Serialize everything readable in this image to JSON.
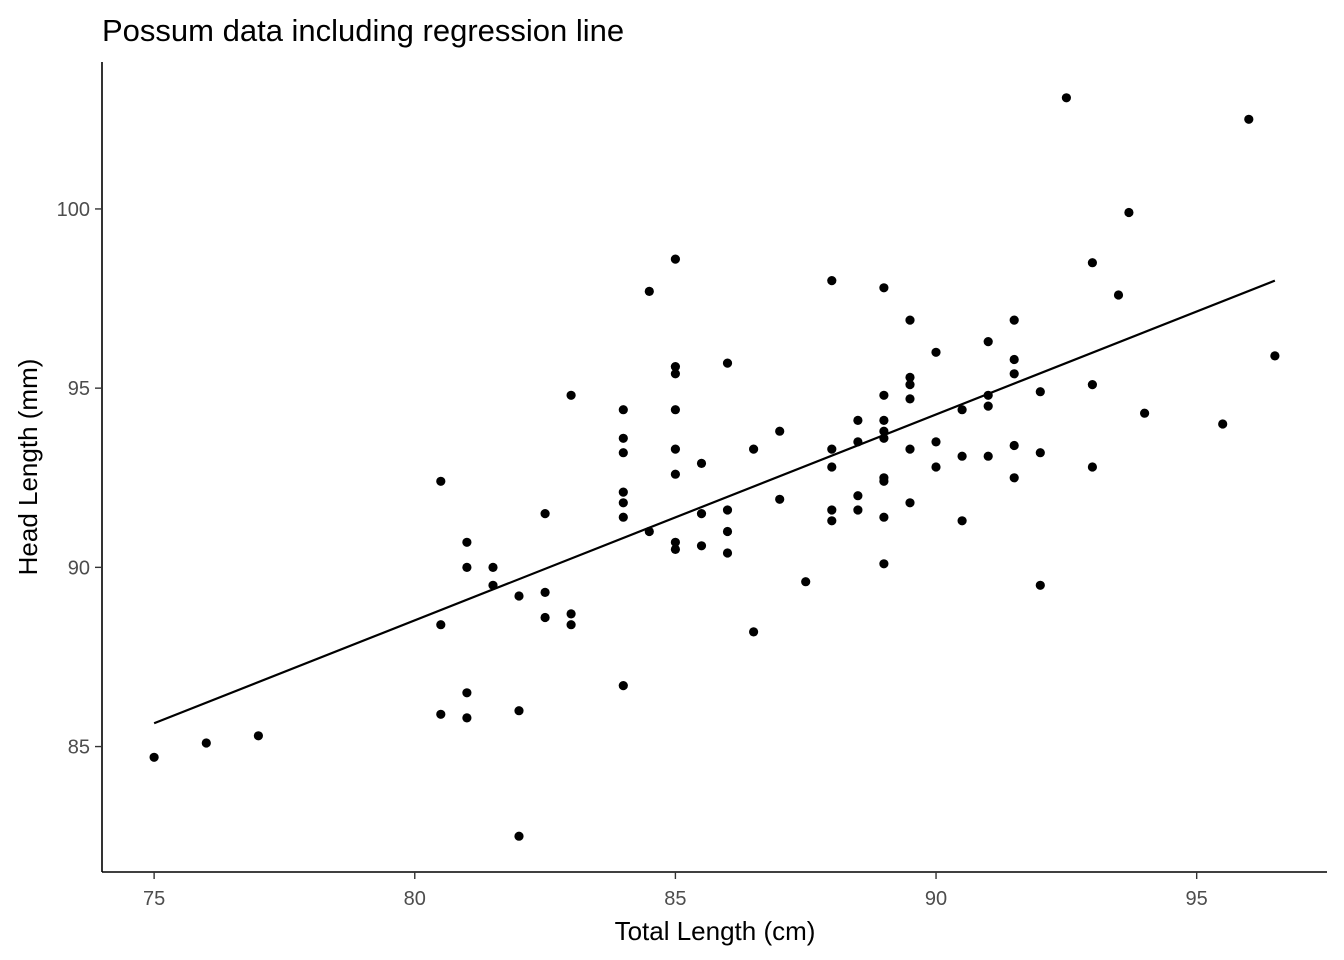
{
  "chart_data": {
    "type": "scatter",
    "title": "Possum data including regression line",
    "xlabel": "Total Length (cm)",
    "ylabel": "Head Length (mm)",
    "xlim": [
      74.0,
      97.5
    ],
    "ylim": [
      81.5,
      104.1
    ],
    "x_ticks": [
      75,
      80,
      85,
      90,
      95
    ],
    "y_ticks": [
      85,
      90,
      95,
      100
    ],
    "x_tick_labels": [
      "75",
      "80",
      "85",
      "90",
      "95"
    ],
    "y_tick_labels": [
      "85",
      "90",
      "95",
      "100"
    ],
    "grid": false,
    "point_color": "#000000",
    "line_color": "#000000",
    "regression_line": {
      "x": [
        75.0,
        96.5
      ],
      "y": [
        85.65,
        98.0
      ]
    },
    "points": [
      [
        75.0,
        84.7
      ],
      [
        76.0,
        85.1
      ],
      [
        77.0,
        85.3
      ],
      [
        80.5,
        92.4
      ],
      [
        80.5,
        88.4
      ],
      [
        80.5,
        85.9
      ],
      [
        81.0,
        90.7
      ],
      [
        81.0,
        90.0
      ],
      [
        81.0,
        86.5
      ],
      [
        81.0,
        85.8
      ],
      [
        81.5,
        90.0
      ],
      [
        81.5,
        89.5
      ],
      [
        82.0,
        89.2
      ],
      [
        82.0,
        86.0
      ],
      [
        82.0,
        82.5
      ],
      [
        82.5,
        91.5
      ],
      [
        82.5,
        89.3
      ],
      [
        82.5,
        88.6
      ],
      [
        83.0,
        94.8
      ],
      [
        83.0,
        88.7
      ],
      [
        83.0,
        88.4
      ],
      [
        84.0,
        94.4
      ],
      [
        84.0,
        93.6
      ],
      [
        84.0,
        93.2
      ],
      [
        84.0,
        92.1
      ],
      [
        84.0,
        91.8
      ],
      [
        84.0,
        91.4
      ],
      [
        84.0,
        86.7
      ],
      [
        84.5,
        97.7
      ],
      [
        84.5,
        91.0
      ],
      [
        85.0,
        98.6
      ],
      [
        85.0,
        95.6
      ],
      [
        85.0,
        95.4
      ],
      [
        85.0,
        94.4
      ],
      [
        85.0,
        93.3
      ],
      [
        85.0,
        92.6
      ],
      [
        85.0,
        90.7
      ],
      [
        85.0,
        90.5
      ],
      [
        85.5,
        92.9
      ],
      [
        85.5,
        91.5
      ],
      [
        85.5,
        90.6
      ],
      [
        86.0,
        95.7
      ],
      [
        86.0,
        91.6
      ],
      [
        86.0,
        91.0
      ],
      [
        86.0,
        90.4
      ],
      [
        86.5,
        93.3
      ],
      [
        86.5,
        88.2
      ],
      [
        87.0,
        93.8
      ],
      [
        87.0,
        91.9
      ],
      [
        87.5,
        89.6
      ],
      [
        88.0,
        98.0
      ],
      [
        88.0,
        93.3
      ],
      [
        88.0,
        92.8
      ],
      [
        88.0,
        91.6
      ],
      [
        88.0,
        91.3
      ],
      [
        88.5,
        94.1
      ],
      [
        88.5,
        93.5
      ],
      [
        88.5,
        92.0
      ],
      [
        88.5,
        91.6
      ],
      [
        89.0,
        97.8
      ],
      [
        89.0,
        94.8
      ],
      [
        89.0,
        94.1
      ],
      [
        89.0,
        93.8
      ],
      [
        89.0,
        93.6
      ],
      [
        89.0,
        92.5
      ],
      [
        89.0,
        92.4
      ],
      [
        89.0,
        91.4
      ],
      [
        89.0,
        90.1
      ],
      [
        89.5,
        96.9
      ],
      [
        89.5,
        95.3
      ],
      [
        89.5,
        95.1
      ],
      [
        89.5,
        94.7
      ],
      [
        89.5,
        93.3
      ],
      [
        89.5,
        91.8
      ],
      [
        90.0,
        96.0
      ],
      [
        90.0,
        93.5
      ],
      [
        90.0,
        92.8
      ],
      [
        90.5,
        94.4
      ],
      [
        90.5,
        93.1
      ],
      [
        90.5,
        91.3
      ],
      [
        91.0,
        96.3
      ],
      [
        91.0,
        94.8
      ],
      [
        91.0,
        94.5
      ],
      [
        91.0,
        93.1
      ],
      [
        91.5,
        96.9
      ],
      [
        91.5,
        95.8
      ],
      [
        91.5,
        95.4
      ],
      [
        91.5,
        93.4
      ],
      [
        91.5,
        92.5
      ],
      [
        92.0,
        94.9
      ],
      [
        92.0,
        93.2
      ],
      [
        92.0,
        89.5
      ],
      [
        92.5,
        103.1
      ],
      [
        93.0,
        98.5
      ],
      [
        93.0,
        95.1
      ],
      [
        93.0,
        92.8
      ],
      [
        93.5,
        97.6
      ],
      [
        93.7,
        99.9
      ],
      [
        94.0,
        94.3
      ],
      [
        95.5,
        94.0
      ],
      [
        96.0,
        102.5
      ],
      [
        96.5,
        95.9
      ]
    ]
  }
}
